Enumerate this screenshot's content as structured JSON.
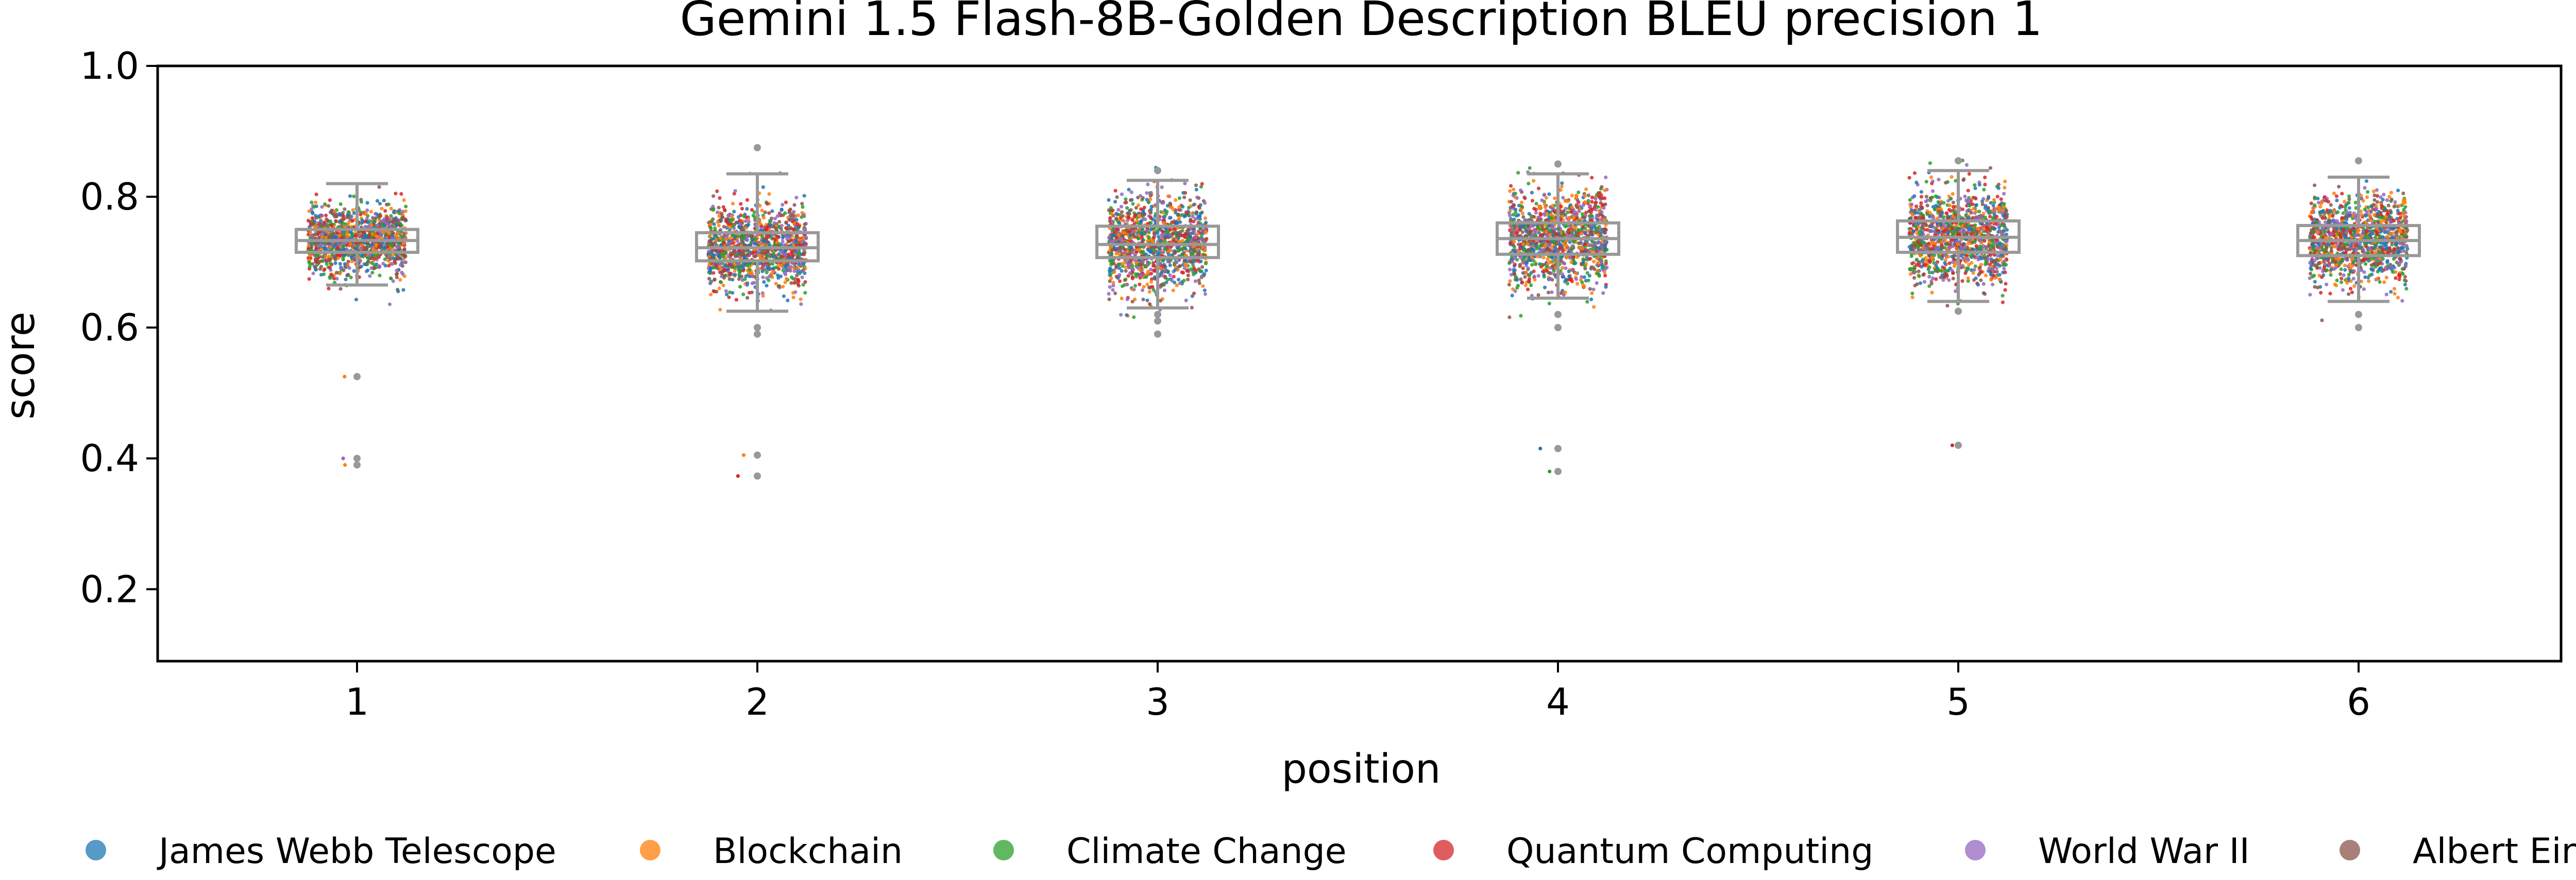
{
  "chart_data": {
    "type": "scatter",
    "subtype": "box-strip",
    "title": "Gemini 1.5 Flash-8B-Golden Description BLEU precision 1",
    "xlabel": "position",
    "ylabel": "score",
    "categories": [
      "1",
      "2",
      "3",
      "4",
      "5",
      "6"
    ],
    "ylim": [
      0.09,
      1.0
    ],
    "yticks": [
      0.2,
      0.4,
      0.6,
      0.8,
      1.0
    ],
    "ytick_labels": [
      "0.2",
      "0.4",
      "0.6",
      "0.8",
      "1.0"
    ],
    "grid": false,
    "legend_position": "bottom",
    "box_color": "#999999",
    "boxes": [
      {
        "category": "1",
        "whisker_low": 0.665,
        "q1": 0.715,
        "median": 0.733,
        "q3": 0.75,
        "whisker_high": 0.82,
        "outliers": [
          0.525,
          0.4,
          0.39
        ]
      },
      {
        "category": "2",
        "whisker_low": 0.625,
        "q1": 0.702,
        "median": 0.722,
        "q3": 0.745,
        "whisker_high": 0.835,
        "outliers": [
          0.875,
          0.6,
          0.59,
          0.405,
          0.373
        ]
      },
      {
        "category": "3",
        "whisker_low": 0.63,
        "q1": 0.707,
        "median": 0.727,
        "q3": 0.755,
        "whisker_high": 0.825,
        "outliers": [
          0.84,
          0.62,
          0.61,
          0.59
        ]
      },
      {
        "category": "4",
        "whisker_low": 0.645,
        "q1": 0.712,
        "median": 0.736,
        "q3": 0.76,
        "whisker_high": 0.835,
        "outliers": [
          0.85,
          0.62,
          0.6,
          0.415,
          0.38
        ]
      },
      {
        "category": "5",
        "whisker_low": 0.64,
        "q1": 0.715,
        "median": 0.738,
        "q3": 0.763,
        "whisker_high": 0.84,
        "outliers": [
          0.855,
          0.625,
          0.42
        ]
      },
      {
        "category": "6",
        "whisker_low": 0.64,
        "q1": 0.71,
        "median": 0.733,
        "q3": 0.756,
        "whisker_high": 0.83,
        "outliers": [
          0.855,
          0.62,
          0.6
        ]
      }
    ],
    "series": [
      {
        "name": "James Webb Telescope",
        "color": "#1f77b4"
      },
      {
        "name": "Blockchain",
        "color": "#ff7f0e"
      },
      {
        "name": "Climate Change",
        "color": "#2ca02c"
      },
      {
        "name": "Quantum Computing",
        "color": "#d62728"
      },
      {
        "name": "World War II",
        "color": "#9467bd"
      },
      {
        "name": "Albert Einstein",
        "color": "#8c564b"
      }
    ]
  }
}
